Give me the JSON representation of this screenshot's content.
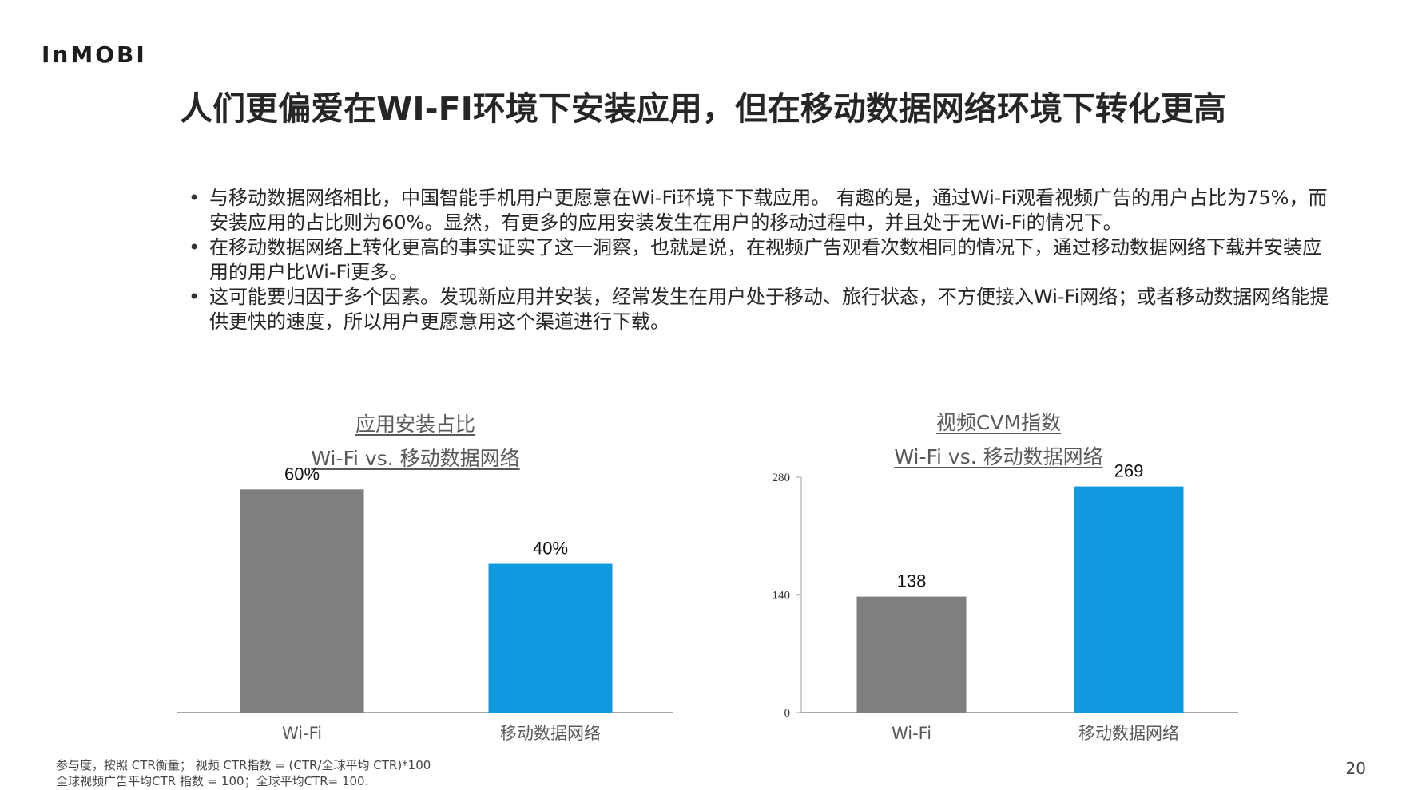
{
  "logo": {
    "text": "InMOBI"
  },
  "title": "人们更偏爱在WI-FI环境下安装应用，但在移动数据网络环境下转化更高",
  "bullets": [
    "与移动数据网络相比，中国智能手机用户更愿意在Wi-Fi环境下下载应用。 有趣的是，通过Wi-Fi观看视频广告的用户占比为75%，而安装应用的占比则为60%。显然，有更多的应用安装发生在用户的移动过程中，并且处于无Wi-Fi的情况下。",
    "在移动数据网络上转化更高的事实证实了这一洞察，也就是说，在视频广告观看次数相同的情况下，通过移动数据网络下载并安装应用的用户比Wi-Fi更多。",
    "这可能要归因于多个因素。发现新应用并安装，经常发生在用户处于移动、旅行状态，不方便接入Wi-Fi网络；或者移动数据网络能提供更快的速度，所以用户更愿意用这个渠道进行下载。"
  ],
  "chart_data": [
    {
      "type": "bar",
      "title": "应用安装占比",
      "subtitle": "Wi-Fi vs. 移动数据网络",
      "categories": [
        "Wi-Fi",
        "移动数据网络"
      ],
      "values": [
        60,
        40
      ],
      "data_labels": [
        "60%",
        "40%"
      ],
      "colors": [
        "#7f7f7f",
        "#0f9ae0"
      ],
      "ylim": [
        0,
        65
      ],
      "y_axis_visible": false,
      "grid": false
    },
    {
      "type": "bar",
      "title": "视频CVM指数",
      "subtitle": "Wi-Fi vs. 移动数据网络",
      "categories": [
        "Wi-Fi",
        "移动数据网络"
      ],
      "values": [
        138,
        269
      ],
      "data_labels": [
        "138",
        "269"
      ],
      "colors": [
        "#7f7f7f",
        "#0f9ae0"
      ],
      "ylim": [
        0,
        280
      ],
      "yticks": [
        0,
        140,
        280
      ],
      "ytick_labels": [
        "0",
        "140",
        "280"
      ],
      "y_axis_visible": true,
      "grid": false
    }
  ],
  "footnote": {
    "line1": "参与度，按照 CTR衡量； 视频 CTR指数 = (CTR/全球平均 CTR)*100",
    "line2": "全球视频广告平均CTR 指数 = 100；全球平均CTR= 100."
  },
  "page_number": "20"
}
